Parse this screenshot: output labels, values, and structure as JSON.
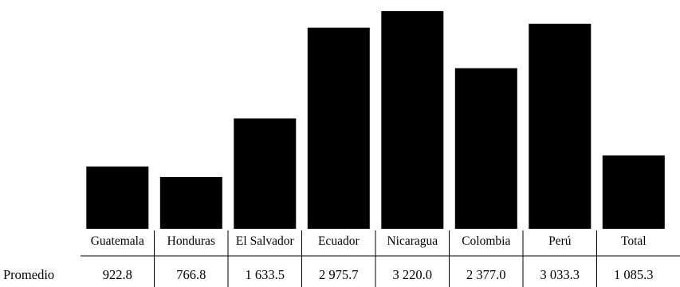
{
  "chart_data": {
    "type": "bar",
    "categories": [
      "Guatemala",
      "Honduras",
      "El Salvador",
      "Ecuador",
      "Nicaragua",
      "Colombia",
      "Perú",
      "Total"
    ],
    "values": [
      922.8,
      766.8,
      1633.5,
      2975.7,
      3220.0,
      2377.0,
      3033.3,
      1085.3
    ],
    "value_labels": [
      "922.8",
      "766.8",
      "1 633.5",
      "2 975.7",
      "3 220.0",
      "2 377.0",
      "3 033.3",
      "1 085.3"
    ],
    "row_label": "Promedio",
    "title": "",
    "xlabel": "",
    "ylabel": "",
    "ylim": [
      0,
      3220.0
    ],
    "grid": false,
    "bar_color": "#000000"
  }
}
